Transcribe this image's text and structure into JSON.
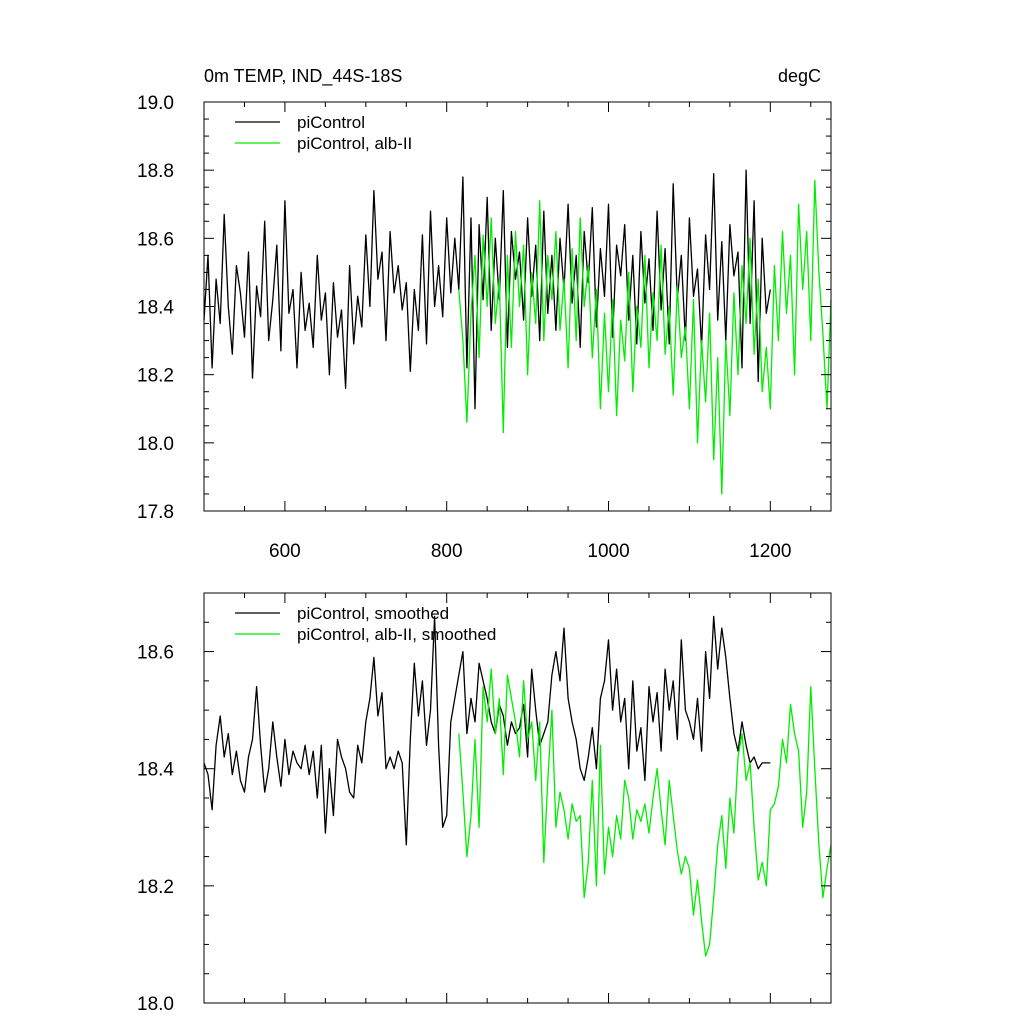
{
  "chart_data": [
    {
      "type": "line",
      "title_left": "0m TEMP, IND_44S-18S",
      "title_right": "degC",
      "xlim": [
        500,
        1275
      ],
      "ylim": [
        17.8,
        19.0
      ],
      "xticks": [
        600,
        800,
        1000,
        1200
      ],
      "xtick_labels": [
        "600",
        "800",
        "1000",
        "1200"
      ],
      "yticks": [
        17.8,
        18.0,
        18.2,
        18.4,
        18.6,
        18.8,
        19.0
      ],
      "ytick_labels": [
        "17.8",
        "18.0",
        "18.2",
        "18.4",
        "18.6",
        "18.8",
        "19.0"
      ],
      "series": [
        {
          "name": "piControl",
          "color": "#000000",
          "x": [
            500,
            505,
            510,
            515,
            520,
            525,
            530,
            535,
            540,
            545,
            550,
            555,
            560,
            565,
            570,
            575,
            580,
            585,
            590,
            595,
            600,
            605,
            610,
            615,
            620,
            625,
            630,
            635,
            640,
            645,
            650,
            655,
            660,
            665,
            670,
            675,
            680,
            685,
            690,
            695,
            700,
            705,
            710,
            715,
            720,
            725,
            730,
            735,
            740,
            745,
            750,
            755,
            760,
            765,
            770,
            775,
            780,
            785,
            790,
            795,
            800,
            805,
            810,
            815,
            820,
            825,
            830,
            835,
            840,
            845,
            850,
            855,
            860,
            865,
            870,
            875,
            880,
            885,
            890,
            895,
            900,
            905,
            910,
            915,
            920,
            925,
            930,
            935,
            940,
            945,
            950,
            955,
            960,
            965,
            970,
            975,
            980,
            985,
            990,
            995,
            1000,
            1005,
            1010,
            1015,
            1020,
            1025,
            1030,
            1035,
            1040,
            1045,
            1050,
            1055,
            1060,
            1065,
            1070,
            1075,
            1080,
            1085,
            1090,
            1095,
            1100,
            1105,
            1110,
            1115,
            1120,
            1125,
            1130,
            1135,
            1140,
            1145,
            1150,
            1155,
            1160,
            1165,
            1170,
            1175,
            1180,
            1185,
            1190,
            1195,
            1200
          ],
          "values": [
            18.36,
            18.55,
            18.22,
            18.48,
            18.35,
            18.67,
            18.4,
            18.26,
            18.52,
            18.44,
            18.31,
            18.56,
            18.19,
            18.46,
            18.37,
            18.65,
            18.3,
            18.42,
            18.58,
            18.27,
            18.71,
            18.38,
            18.45,
            18.22,
            18.5,
            18.33,
            18.41,
            18.28,
            18.55,
            18.36,
            18.44,
            18.2,
            18.47,
            18.31,
            18.39,
            18.16,
            18.52,
            18.29,
            18.43,
            18.34,
            18.61,
            18.4,
            18.74,
            18.48,
            18.56,
            18.3,
            18.62,
            18.44,
            18.52,
            18.39,
            18.47,
            18.21,
            18.45,
            18.33,
            18.61,
            18.29,
            18.68,
            18.4,
            18.52,
            18.37,
            18.66,
            18.44,
            18.6,
            18.45,
            18.78,
            18.22,
            18.66,
            18.1,
            18.64,
            18.42,
            18.72,
            18.33,
            18.6,
            18.42,
            18.74,
            18.28,
            18.62,
            18.48,
            18.56,
            18.36,
            18.66,
            18.43,
            18.58,
            18.3,
            18.68,
            18.38,
            18.55,
            18.33,
            18.6,
            18.45,
            18.7,
            18.41,
            18.55,
            18.28,
            18.62,
            18.47,
            18.69,
            18.34,
            18.57,
            18.43,
            18.7,
            18.31,
            18.58,
            18.49,
            18.64,
            18.36,
            18.55,
            18.29,
            18.62,
            18.41,
            18.54,
            18.33,
            18.68,
            18.39,
            18.57,
            18.29,
            18.76,
            18.42,
            18.55,
            18.3,
            18.66,
            18.43,
            18.51,
            18.28,
            18.61,
            18.45,
            18.79,
            18.36,
            18.59,
            18.3,
            18.64,
            18.49,
            18.56,
            18.22,
            18.8,
            18.35,
            18.71,
            18.18,
            18.6,
            18.38,
            18.45
          ]
        },
        {
          "name": "piControl, alb-II",
          "color": "#00ee00",
          "x": [
            815,
            820,
            825,
            830,
            835,
            840,
            845,
            850,
            855,
            860,
            865,
            870,
            875,
            880,
            885,
            890,
            895,
            900,
            905,
            910,
            915,
            920,
            925,
            930,
            935,
            940,
            945,
            950,
            955,
            960,
            965,
            970,
            975,
            980,
            985,
            990,
            995,
            1000,
            1005,
            1010,
            1015,
            1020,
            1025,
            1030,
            1035,
            1040,
            1045,
            1050,
            1055,
            1060,
            1065,
            1070,
            1075,
            1080,
            1085,
            1090,
            1095,
            1100,
            1105,
            1110,
            1115,
            1120,
            1125,
            1130,
            1135,
            1140,
            1145,
            1150,
            1155,
            1160,
            1165,
            1170,
            1175,
            1180,
            1185,
            1190,
            1195,
            1200,
            1205,
            1210,
            1215,
            1220,
            1225,
            1230,
            1235,
            1240,
            1245,
            1250,
            1255,
            1260,
            1265,
            1270,
            1275
          ],
          "values": [
            18.45,
            18.3,
            18.06,
            18.38,
            18.55,
            18.25,
            18.61,
            18.4,
            18.66,
            18.35,
            18.48,
            18.03,
            18.55,
            18.28,
            18.62,
            18.4,
            18.58,
            18.2,
            18.5,
            18.35,
            18.71,
            18.3,
            18.55,
            18.42,
            18.62,
            18.33,
            18.48,
            18.22,
            18.57,
            18.3,
            18.66,
            18.4,
            18.52,
            18.25,
            18.45,
            18.1,
            18.38,
            18.15,
            18.42,
            18.08,
            18.36,
            18.24,
            18.5,
            18.15,
            18.4,
            18.28,
            18.55,
            18.22,
            18.44,
            18.3,
            18.58,
            18.26,
            18.4,
            18.14,
            18.46,
            18.25,
            18.34,
            18.1,
            18.42,
            18.0,
            18.3,
            18.12,
            18.38,
            17.95,
            18.25,
            17.85,
            18.3,
            18.08,
            18.44,
            18.2,
            18.52,
            18.35,
            18.6,
            18.26,
            18.48,
            18.15,
            18.28,
            18.1,
            18.52,
            18.3,
            18.62,
            18.38,
            18.55,
            18.2,
            18.7,
            18.45,
            18.62,
            18.3,
            18.77,
            18.5,
            18.32,
            18.1,
            18.42
          ]
        }
      ]
    },
    {
      "type": "line",
      "xlim": [
        500,
        1275
      ],
      "ylim": [
        18.0,
        18.7
      ],
      "xticks": [
        600,
        800,
        1000,
        1200
      ],
      "yticks": [
        18.0,
        18.2,
        18.4,
        18.6
      ],
      "ytick_labels": [
        "18.0",
        "18.2",
        "18.4",
        "18.6"
      ],
      "series": [
        {
          "name": "piControl, smoothed",
          "color": "#000000",
          "x": [
            500,
            505,
            510,
            515,
            520,
            525,
            530,
            535,
            540,
            545,
            550,
            555,
            560,
            565,
            570,
            575,
            580,
            585,
            590,
            595,
            600,
            605,
            610,
            615,
            620,
            625,
            630,
            635,
            640,
            645,
            650,
            655,
            660,
            665,
            670,
            675,
            680,
            685,
            690,
            695,
            700,
            705,
            710,
            715,
            720,
            725,
            730,
            735,
            740,
            745,
            750,
            755,
            760,
            765,
            770,
            775,
            780,
            785,
            790,
            795,
            800,
            805,
            810,
            815,
            820,
            825,
            830,
            835,
            840,
            845,
            850,
            855,
            860,
            865,
            870,
            875,
            880,
            885,
            890,
            895,
            900,
            905,
            910,
            915,
            920,
            925,
            930,
            935,
            940,
            945,
            950,
            955,
            960,
            965,
            970,
            975,
            980,
            985,
            990,
            995,
            1000,
            1005,
            1010,
            1015,
            1020,
            1025,
            1030,
            1035,
            1040,
            1045,
            1050,
            1055,
            1060,
            1065,
            1070,
            1075,
            1080,
            1085,
            1090,
            1095,
            1100,
            1105,
            1110,
            1115,
            1120,
            1125,
            1130,
            1135,
            1140,
            1145,
            1150,
            1155,
            1160,
            1165,
            1170,
            1175,
            1180,
            1185,
            1190,
            1195,
            1200
          ],
          "values": [
            18.41,
            18.39,
            18.33,
            18.44,
            18.49,
            18.42,
            18.46,
            18.39,
            18.43,
            18.38,
            18.36,
            18.42,
            18.45,
            18.54,
            18.44,
            18.36,
            18.4,
            18.48,
            18.42,
            18.37,
            18.45,
            18.39,
            18.43,
            18.41,
            18.4,
            18.44,
            18.39,
            18.43,
            18.35,
            18.44,
            18.29,
            18.4,
            18.32,
            18.45,
            18.42,
            18.4,
            18.36,
            18.35,
            18.44,
            18.41,
            18.48,
            18.52,
            18.59,
            18.49,
            18.53,
            18.4,
            18.42,
            18.4,
            18.43,
            18.41,
            18.27,
            18.45,
            18.58,
            18.49,
            18.55,
            18.44,
            18.5,
            18.66,
            18.44,
            18.3,
            18.32,
            18.48,
            18.52,
            18.56,
            18.6,
            18.46,
            18.52,
            18.48,
            18.58,
            18.55,
            18.52,
            18.48,
            18.46,
            18.51,
            18.49,
            18.44,
            18.48,
            18.46,
            18.47,
            18.51,
            18.42,
            18.57,
            18.5,
            18.44,
            18.46,
            18.48,
            18.56,
            18.6,
            18.55,
            18.64,
            18.52,
            18.48,
            18.45,
            18.4,
            18.38,
            18.42,
            18.47,
            18.4,
            18.52,
            18.55,
            18.62,
            18.5,
            18.57,
            18.48,
            18.52,
            18.4,
            18.55,
            18.43,
            18.47,
            18.38,
            18.54,
            18.48,
            18.53,
            18.43,
            18.57,
            18.5,
            18.55,
            18.45,
            18.62,
            18.5,
            18.48,
            18.45,
            18.52,
            18.43,
            18.6,
            18.52,
            18.66,
            18.57,
            18.64,
            18.59,
            18.52,
            18.46,
            18.43,
            18.48,
            18.44,
            18.41,
            18.42,
            18.4,
            18.41,
            18.41,
            18.41
          ]
        },
        {
          "name": "piControl, alb-II, smoothed",
          "color": "#00ee00",
          "x": [
            815,
            820,
            825,
            830,
            835,
            840,
            845,
            850,
            855,
            860,
            865,
            870,
            875,
            880,
            885,
            890,
            895,
            900,
            905,
            910,
            915,
            920,
            925,
            930,
            935,
            940,
            945,
            950,
            955,
            960,
            965,
            970,
            975,
            980,
            985,
            990,
            995,
            1000,
            1005,
            1010,
            1015,
            1020,
            1025,
            1030,
            1035,
            1040,
            1045,
            1050,
            1055,
            1060,
            1065,
            1070,
            1075,
            1080,
            1085,
            1090,
            1095,
            1100,
            1105,
            1110,
            1115,
            1120,
            1125,
            1130,
            1135,
            1140,
            1145,
            1150,
            1155,
            1160,
            1165,
            1170,
            1175,
            1180,
            1185,
            1190,
            1195,
            1200,
            1205,
            1210,
            1215,
            1220,
            1225,
            1230,
            1235,
            1240,
            1245,
            1250,
            1255,
            1260,
            1265,
            1270,
            1275
          ],
          "values": [
            18.46,
            18.36,
            18.25,
            18.32,
            18.45,
            18.3,
            18.54,
            18.48,
            18.57,
            18.46,
            18.52,
            18.39,
            18.56,
            18.52,
            18.48,
            18.42,
            18.55,
            18.45,
            18.48,
            18.38,
            18.48,
            18.24,
            18.38,
            18.5,
            18.3,
            18.36,
            18.33,
            18.28,
            18.34,
            18.31,
            18.32,
            18.18,
            18.24,
            18.38,
            18.2,
            18.44,
            18.22,
            18.3,
            18.25,
            18.32,
            18.28,
            18.38,
            18.35,
            18.28,
            18.33,
            18.31,
            18.34,
            18.29,
            18.35,
            18.4,
            18.33,
            18.27,
            18.38,
            18.32,
            18.26,
            18.22,
            18.25,
            18.23,
            18.15,
            18.21,
            18.14,
            18.08,
            18.1,
            18.18,
            18.27,
            18.32,
            18.23,
            18.35,
            18.29,
            18.42,
            18.46,
            18.38,
            18.41,
            18.3,
            18.21,
            18.24,
            18.2,
            18.33,
            18.34,
            18.37,
            18.45,
            18.41,
            18.51,
            18.46,
            18.43,
            18.3,
            18.36,
            18.54,
            18.4,
            18.27,
            18.18,
            18.23,
            18.27
          ]
        }
      ]
    }
  ]
}
